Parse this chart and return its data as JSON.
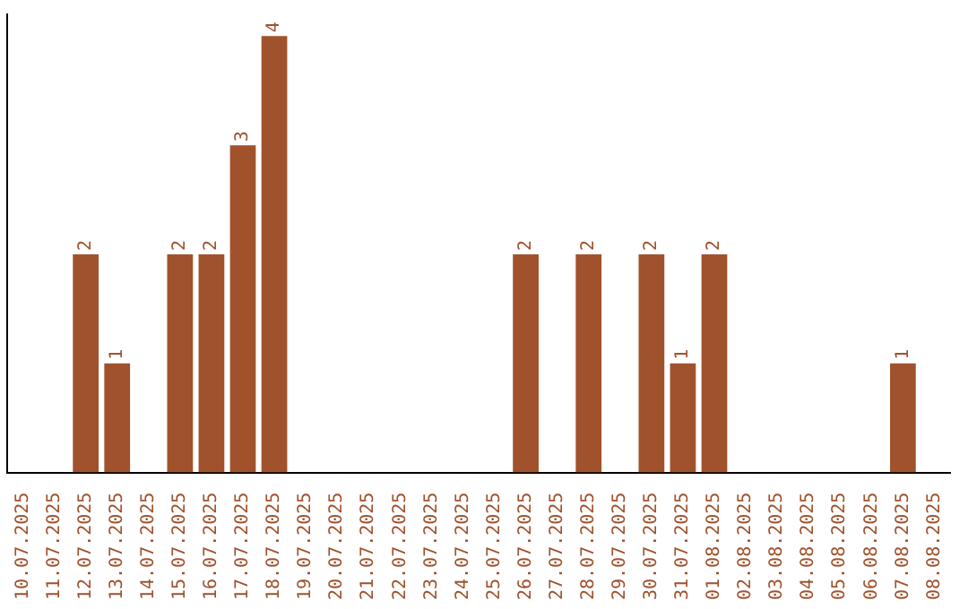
{
  "chart_data": {
    "type": "bar",
    "categories": [
      "10.07.2025",
      "11.07.2025",
      "12.07.2025",
      "13.07.2025",
      "14.07.2025",
      "15.07.2025",
      "16.07.2025",
      "17.07.2025",
      "18.07.2025",
      "19.07.2025",
      "20.07.2025",
      "21.07.2025",
      "22.07.2025",
      "23.07.2025",
      "24.07.2025",
      "25.07.2025",
      "26.07.2025",
      "27.07.2025",
      "28.07.2025",
      "29.07.2025",
      "30.07.2025",
      "31.07.2025",
      "01.08.2025",
      "02.08.2025",
      "03.08.2025",
      "04.08.2025",
      "05.08.2025",
      "06.08.2025",
      "07.08.2025",
      "08.08.2025"
    ],
    "values": [
      0,
      0,
      2,
      1,
      0,
      2,
      2,
      3,
      4,
      0,
      0,
      0,
      0,
      0,
      0,
      0,
      2,
      0,
      2,
      0,
      2,
      1,
      2,
      0,
      0,
      0,
      0,
      0,
      1,
      0
    ],
    "color": "#a0522d",
    "ylim": [
      0,
      4.2
    ],
    "value_labels": [
      null,
      null,
      "2",
      "1",
      null,
      "2",
      "2",
      "3",
      "4",
      null,
      null,
      null,
      null,
      null,
      null,
      null,
      "2",
      null,
      "2",
      null,
      "2",
      "1",
      "2",
      null,
      null,
      null,
      null,
      null,
      "1",
      null
    ],
    "tick_labels": "x",
    "grid": false,
    "legend": false
  }
}
